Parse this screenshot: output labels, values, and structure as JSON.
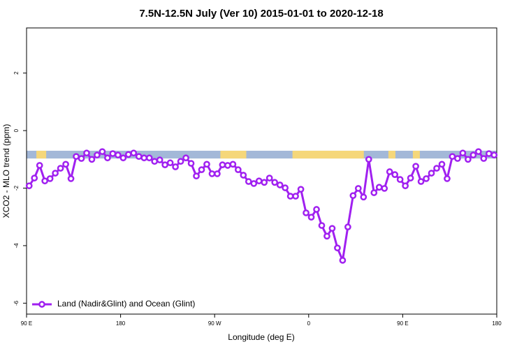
{
  "chart_data": {
    "type": "line",
    "title": "7.5N-12.5N July (Ver 10)   2015-01-01 to 2020-12-18",
    "x_label": "Longitude (deg E)",
    "y_label": "XCO2 - MLO trend (ppm)",
    "xlim": [
      90,
      540
    ],
    "ylim": [
      -6.38,
      3.57
    ],
    "xticks": [
      {
        "value": 90,
        "label": "90 E"
      },
      180,
      {
        "value": 270,
        "label": "90 W"
      },
      {
        "value": 360,
        "label": "0"
      },
      {
        "value": 450,
        "label": "90 E"
      },
      {
        "value": 540,
        "label": "180"
      }
    ],
    "yticks": [
      -6,
      -4,
      -2,
      0,
      2
    ],
    "legend": "bottom-left",
    "band": {
      "range": [
        -0.97,
        -0.7
      ],
      "ocean_color": "#a3b8d8",
      "land_color": "#f5d77a",
      "land": [
        [
          99.4,
          108.8
        ],
        [
          275.5,
          300.3
        ],
        [
          344.5,
          412.8
        ],
        [
          436.3,
          443
        ],
        [
          459.7,
          466.4
        ]
      ]
    },
    "x": [
      92.5,
      97.5,
      102.5,
      107.5,
      112.5,
      117.5,
      122.5,
      127.5,
      132.5,
      137.5,
      142.5,
      147.5,
      152.5,
      157.5,
      162.5,
      167.5,
      172.5,
      177.5,
      182.5,
      187.5,
      192.5,
      197.5,
      202.5,
      207.5,
      212.5,
      217.5,
      222.5,
      227.5,
      232.5,
      237.5,
      242.5,
      247.5,
      252.5,
      257.5,
      262.5,
      267.5,
      272.5,
      277.5,
      282.5,
      287.5,
      292.5,
      297.5,
      302.5,
      307.5,
      312.5,
      317.5,
      322.5,
      327.5,
      332.5,
      337.5,
      342.5,
      347.5,
      352.5,
      357.5,
      362.5,
      367.5,
      372.5,
      377.5,
      382.5,
      387.5,
      392.5,
      397.5,
      402.5,
      407.5,
      412.5,
      417.5,
      422.5,
      427.5,
      432.5,
      437.5,
      442.5,
      447.5,
      452.5,
      457.5,
      462.5,
      467.5,
      472.5,
      477.5,
      482.5,
      487.5,
      492.5,
      497.5,
      502.5,
      507.5,
      512.5,
      517.5,
      522.5,
      527.5,
      532.5,
      537.5
    ],
    "series": [
      {
        "name": "Land (Nadir&Glint) and Ocean (Glint)",
        "color": "#a020f0",
        "values": [
          -1.92,
          -1.65,
          -1.21,
          -1.75,
          -1.67,
          -1.48,
          -1.31,
          -1.17,
          -1.67,
          -0.9,
          -0.97,
          -0.78,
          -1.0,
          -0.85,
          -0.73,
          -0.95,
          -0.8,
          -0.85,
          -0.95,
          -0.83,
          -0.78,
          -0.9,
          -0.95,
          -0.95,
          -1.07,
          -1.02,
          -1.19,
          -1.12,
          -1.26,
          -1.07,
          -0.95,
          -1.14,
          -1.58,
          -1.36,
          -1.17,
          -1.5,
          -1.5,
          -1.19,
          -1.21,
          -1.17,
          -1.36,
          -1.55,
          -1.77,
          -1.84,
          -1.75,
          -1.8,
          -1.65,
          -1.8,
          -1.89,
          -1.99,
          -2.28,
          -2.28,
          -2.04,
          -2.86,
          -3.01,
          -2.74,
          -3.3,
          -3.67,
          -3.4,
          -4.08,
          -4.51,
          -3.35,
          -2.26,
          -2.01,
          -2.31,
          -1.0,
          -2.16,
          -1.97,
          -2.01,
          -1.43,
          -1.53,
          -1.7,
          -1.92,
          -1.65,
          -1.24,
          -1.77,
          -1.67,
          -1.48,
          -1.31,
          -1.17,
          -1.67,
          -0.9,
          -0.97,
          -0.78,
          -1.0,
          -0.85,
          -0.73,
          -0.97,
          -0.8,
          -0.85
        ]
      }
    ]
  }
}
